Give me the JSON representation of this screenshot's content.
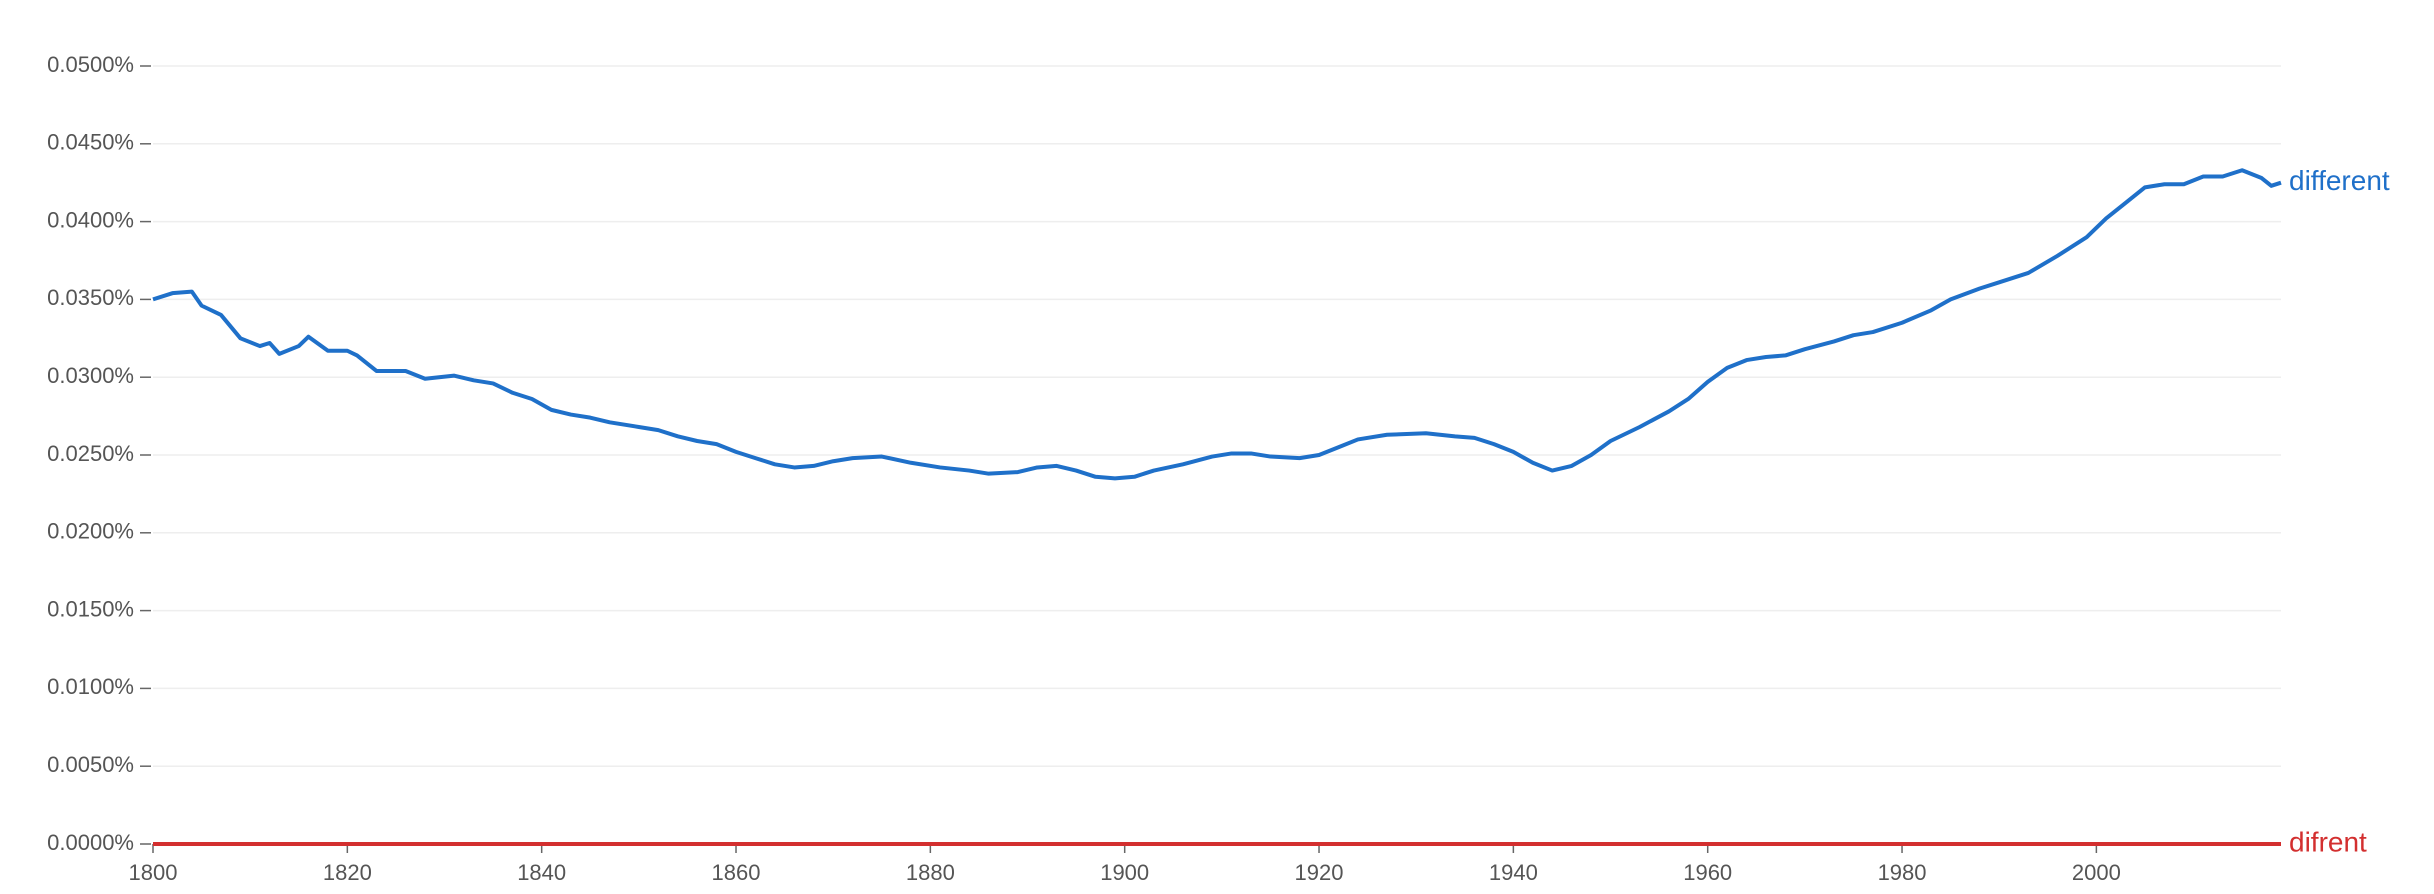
{
  "chart_data": {
    "type": "line",
    "x": [
      1800,
      1802,
      1804,
      1805,
      1807,
      1809,
      1811,
      1812,
      1813,
      1815,
      1816,
      1818,
      1820,
      1821,
      1823,
      1826,
      1828,
      1831,
      1833,
      1835,
      1837,
      1839,
      1841,
      1843,
      1845,
      1847,
      1850,
      1852,
      1854,
      1856,
      1858,
      1860,
      1862,
      1864,
      1866,
      1868,
      1870,
      1872,
      1875,
      1878,
      1881,
      1884,
      1886,
      1889,
      1891,
      1893,
      1895,
      1897,
      1899,
      1901,
      1903,
      1906,
      1909,
      1911,
      1913,
      1915,
      1918,
      1920,
      1922,
      1924,
      1927,
      1931,
      1934,
      1936,
      1938,
      1940,
      1942,
      1944,
      1946,
      1948,
      1950,
      1953,
      1956,
      1958,
      1960,
      1962,
      1964,
      1966,
      1968,
      1970,
      1973,
      1975,
      1977,
      1980,
      1983,
      1985,
      1988,
      1990,
      1993,
      1996,
      1999,
      2001,
      2003,
      2005,
      2007,
      2009,
      2011,
      2013,
      2015,
      2017,
      2018,
      2019
    ],
    "series": [
      {
        "name": "different",
        "color": "#1f70c9",
        "values": [
          0.035,
          0.0354,
          0.0355,
          0.0346,
          0.034,
          0.0325,
          0.032,
          0.0322,
          0.0315,
          0.032,
          0.0326,
          0.0317,
          0.0317,
          0.0314,
          0.0304,
          0.0304,
          0.0299,
          0.0301,
          0.0298,
          0.0296,
          0.029,
          0.0286,
          0.0279,
          0.0276,
          0.0274,
          0.0271,
          0.0268,
          0.0266,
          0.0262,
          0.0259,
          0.0257,
          0.0252,
          0.0248,
          0.0244,
          0.0242,
          0.0243,
          0.0246,
          0.0248,
          0.0249,
          0.0245,
          0.0242,
          0.024,
          0.0238,
          0.0239,
          0.0242,
          0.0243,
          0.024,
          0.0236,
          0.0235,
          0.0236,
          0.024,
          0.0244,
          0.0249,
          0.0251,
          0.0251,
          0.0249,
          0.0248,
          0.025,
          0.0255,
          0.026,
          0.0263,
          0.0264,
          0.0262,
          0.0261,
          0.0257,
          0.0252,
          0.0245,
          0.024,
          0.0243,
          0.025,
          0.0259,
          0.0268,
          0.0278,
          0.0286,
          0.0297,
          0.0306,
          0.0311,
          0.0313,
          0.0314,
          0.0318,
          0.0323,
          0.0327,
          0.0329,
          0.0335,
          0.0343,
          0.035,
          0.0357,
          0.0361,
          0.0367,
          0.0378,
          0.039,
          0.0402,
          0.0412,
          0.0422,
          0.0424,
          0.0424,
          0.0429,
          0.0429,
          0.0433,
          0.0428,
          0.0423,
          0.0425
        ]
      },
      {
        "name": "difrent",
        "color": "#d32f2f",
        "values": [
          0,
          0,
          0,
          0,
          0,
          0,
          0,
          0,
          0,
          0,
          0,
          0,
          0,
          0,
          0,
          0,
          0,
          0,
          0,
          0,
          0,
          0,
          0,
          0,
          0,
          0,
          0,
          0,
          0,
          0,
          0,
          0,
          0,
          0,
          0,
          0,
          0,
          0,
          0,
          0,
          0,
          0,
          0,
          0,
          0,
          0,
          0,
          0,
          0,
          0,
          0,
          0,
          0,
          0,
          0,
          0,
          0,
          0,
          0,
          0,
          0,
          0,
          0,
          0,
          0,
          0,
          0,
          0,
          0,
          0,
          0,
          0,
          0,
          0,
          0,
          0,
          0,
          0,
          0,
          0,
          0,
          0,
          0,
          0,
          0,
          0,
          0,
          0,
          0,
          0,
          0,
          0,
          0,
          0,
          0,
          0,
          0,
          0,
          0,
          0,
          0,
          0
        ]
      }
    ],
    "xlim": [
      1800,
      2019
    ],
    "xticks": [
      1800,
      1820,
      1840,
      1860,
      1880,
      1900,
      1920,
      1940,
      1960,
      1980,
      2000
    ],
    "ylim": [
      0,
      0.05
    ],
    "yticks": [
      {
        "value": 0,
        "label": "0.0000%"
      },
      {
        "value": 0.005,
        "label": "0.0050%"
      },
      {
        "value": 0.01,
        "label": "0.0100%"
      },
      {
        "value": 0.015,
        "label": "0.0150%"
      },
      {
        "value": 0.02,
        "label": "0.0200%"
      },
      {
        "value": 0.025,
        "label": "0.0250%"
      },
      {
        "value": 0.03,
        "label": "0.0300%"
      },
      {
        "value": 0.035,
        "label": "0.0350%"
      },
      {
        "value": 0.04,
        "label": "0.0400%"
      },
      {
        "value": 0.045,
        "label": "0.0450%"
      },
      {
        "value": 0.05,
        "label": "0.0500%"
      }
    ],
    "grid": true
  }
}
